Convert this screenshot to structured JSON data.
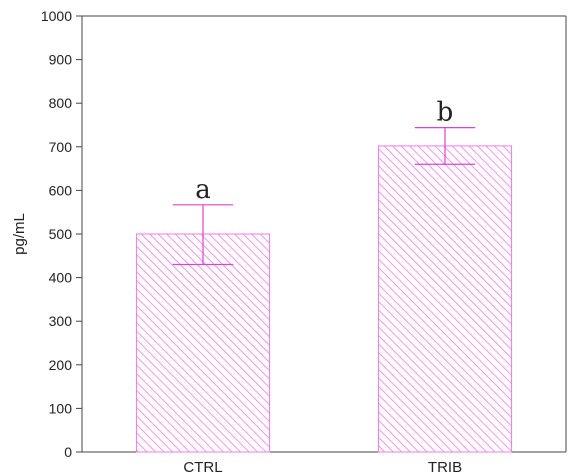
{
  "chart_data": {
    "type": "bar",
    "categories": [
      "CTRL",
      "TRIB"
    ],
    "values": [
      500,
      702
    ],
    "error_upper": [
      567,
      744
    ],
    "error_lower": [
      430,
      660
    ],
    "significance_labels": [
      "a",
      "b"
    ],
    "ylabel": "pg/mL",
    "ylim": [
      0,
      1000
    ],
    "yticks": [
      0,
      100,
      200,
      300,
      400,
      500,
      600,
      700,
      800,
      900,
      1000
    ],
    "grid": false,
    "fill_style": "diagonal-hatch",
    "colors": {
      "bar": "#f07ce8",
      "error": "#e040d8",
      "axis": "#444444"
    }
  }
}
